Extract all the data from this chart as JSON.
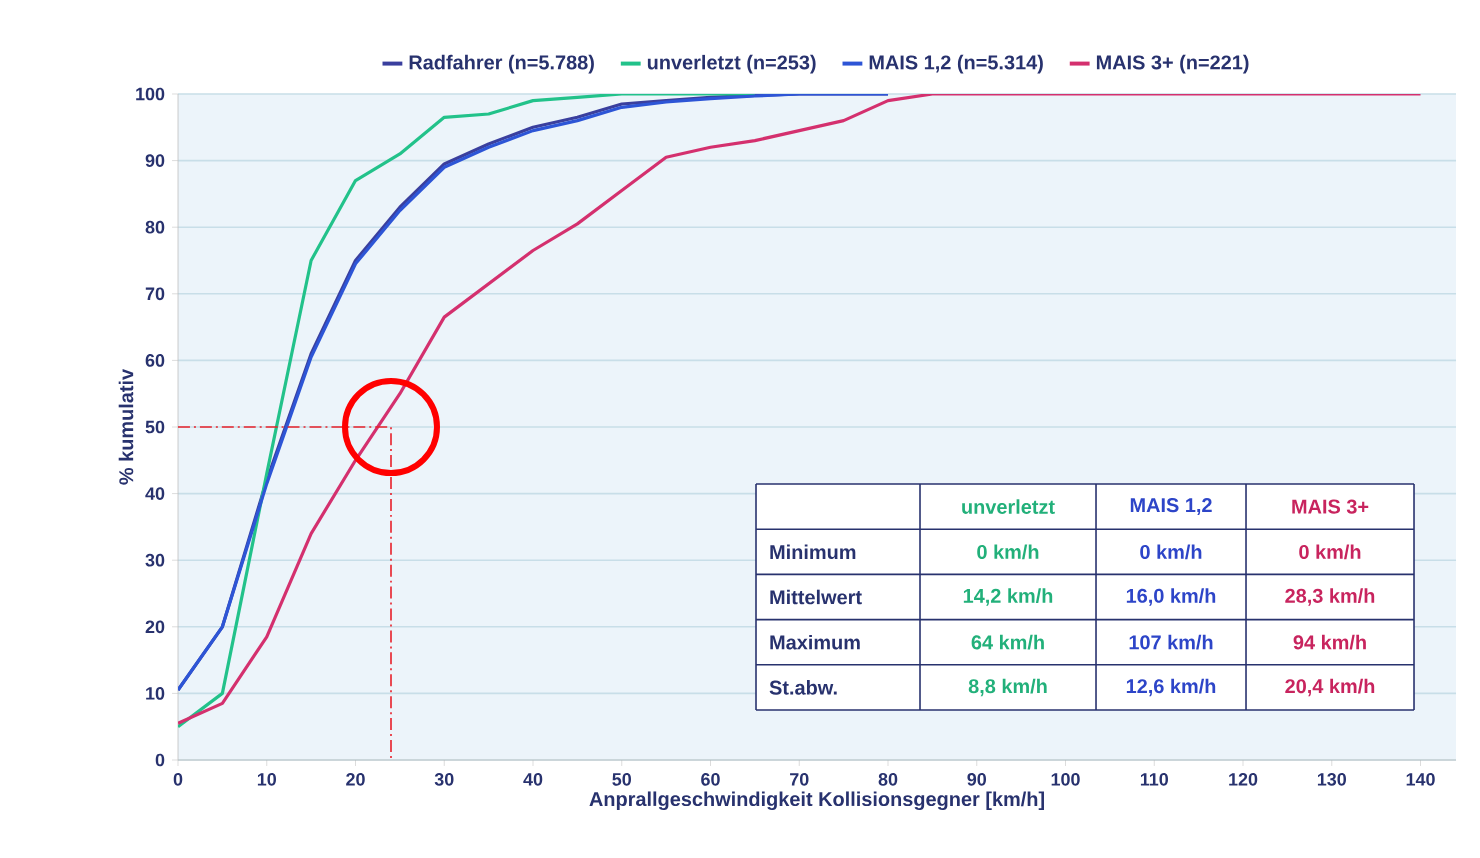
{
  "chart_data": [
    {
      "type": "line",
      "xlabel": "Anprallgeschwindigkeit Kollisionsgegner [km/h]",
      "ylabel": "% kumulativ",
      "xlim": [
        0,
        144
      ],
      "ylim": [
        0,
        100
      ],
      "xticks": [
        0,
        10,
        20,
        30,
        40,
        50,
        60,
        70,
        80,
        90,
        100,
        110,
        120,
        130,
        140
      ],
      "yticks": [
        0,
        10,
        20,
        30,
        40,
        50,
        60,
        70,
        80,
        90,
        100
      ],
      "grid": "y",
      "legend": "top",
      "series": [
        {
          "name": "Radfahrer (n=5.788)",
          "color": "#3a3f9e",
          "x": [
            0,
            5,
            10,
            15,
            20,
            25,
            30,
            35,
            40,
            45,
            50,
            55,
            60,
            65,
            70,
            75,
            80
          ],
          "values": [
            10.5,
            20,
            42,
            61,
            75,
            83,
            89.5,
            92.5,
            95,
            96.5,
            98.5,
            99,
            99.5,
            99.8,
            100,
            100,
            100
          ]
        },
        {
          "name": "unverletzt (n=253)",
          "color": "#22c28a",
          "x": [
            0,
            5,
            10,
            15,
            20,
            25,
            30,
            35,
            40,
            45,
            50,
            55,
            60,
            65
          ],
          "values": [
            5,
            10,
            43,
            75,
            87,
            91,
            96.5,
            97,
            99,
            99.5,
            100,
            100,
            100,
            100
          ]
        },
        {
          "name": "MAIS 1,2 (n=5.314)",
          "color": "#2d55d6",
          "x": [
            0,
            5,
            10,
            15,
            20,
            25,
            30,
            35,
            40,
            45,
            50,
            55,
            60,
            65,
            70,
            75,
            80
          ],
          "values": [
            10.5,
            20,
            41.5,
            60.5,
            74.5,
            82.5,
            89,
            92,
            94.5,
            96,
            98,
            98.8,
            99.3,
            99.7,
            100,
            100,
            100
          ]
        },
        {
          "name": "MAIS 3+ (n=221)",
          "color": "#d4306e",
          "x": [
            0,
            5,
            10,
            15,
            20,
            25,
            30,
            35,
            40,
            45,
            50,
            55,
            60,
            65,
            70,
            75,
            80,
            85,
            90,
            100,
            110,
            120,
            130,
            140
          ],
          "values": [
            5.5,
            8.5,
            18.5,
            34,
            45,
            55,
            66.5,
            71.5,
            76.5,
            80.5,
            85.5,
            90.5,
            92,
            93,
            94.5,
            96,
            99,
            100,
            100,
            100,
            100,
            100,
            100,
            100
          ]
        },
        {
          "color": "#e8202a",
          "line_style": "dashed",
          "x": [
            0,
            24,
            24
          ],
          "values": [
            50,
            50,
            0
          ]
        }
      ]
    },
    {
      "type": "other",
      "categories": [
        "unverletzt",
        "MAIS 1,2",
        "MAIS 3+"
      ],
      "colors": [
        "#22b07a",
        "#2d45c8",
        "#c8245e"
      ],
      "y_categories": [
        "Minimum",
        "Mittelwert",
        "Maximum",
        "St.abw."
      ],
      "cell_labels": [
        [
          "0 km/h",
          "0 km/h",
          "0 km/h"
        ],
        [
          "14,2 km/h",
          "16,0 km/h",
          "28,3 km/h"
        ],
        [
          "64 km/h",
          "107 km/h",
          "94 km/h"
        ],
        [
          "8,8 km/h",
          "12,6 km/h",
          "20,4 km/h"
        ]
      ]
    }
  ]
}
